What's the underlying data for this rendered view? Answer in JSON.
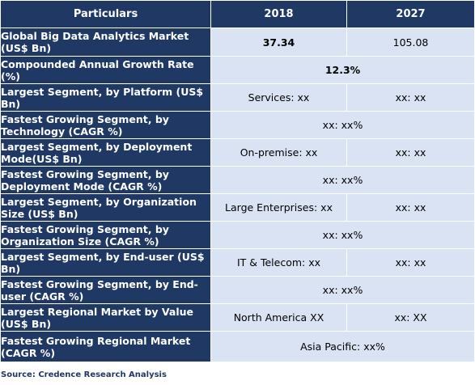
{
  "header": {
    "col_particulars": "Particulars",
    "col_2018": "2018",
    "col_2027": "2027"
  },
  "rows": [
    {
      "label": "Global Big Data Analytics Market (US$ Bn)",
      "v2018": "37.34",
      "v2027": "105.08"
    },
    {
      "label": "Compounded Annual Growth Rate (%)",
      "merged": "12.3%"
    },
    {
      "label": "Largest Segment, by Platform (US$ Bn)",
      "v2018": "Services: xx",
      "v2027": "xx: xx"
    },
    {
      "label": "Fastest Growing Segment, by Technology (CAGR %)",
      "merged": "xx:  xx%"
    },
    {
      "label": "Largest Segment, by Deployment Mode(US$ Bn)",
      "v2018": "On-premise: xx",
      "v2027": "xx: xx"
    },
    {
      "label": "Fastest Growing Segment, by Deployment Mode (CAGR %)",
      "merged": "xx:  xx%"
    },
    {
      "label": "Largest Segment, by Organization Size (US$ Bn)",
      "v2018": "Large Enterprises: xx",
      "v2027": "xx: xx"
    },
    {
      "label": "Fastest Growing Segment, by Organization Size (CAGR %)",
      "merged": "xx:  xx%"
    },
    {
      "label": "Largest Segment, by End-user (US$ Bn)",
      "v2018": "IT & Telecom: xx",
      "v2027": "xx: xx"
    },
    {
      "label": "Fastest Growing Segment, by End-user (CAGR %)",
      "merged": "xx:  xx%"
    },
    {
      "label": "Largest Regional Market by Value (US$ Bn)",
      "v2018": "North America XX",
      "v2027": "xx: XX"
    },
    {
      "label": "Fastest Growing Regional Market (CAGR %)",
      "merged": "Asia Pacific: xx%"
    }
  ],
  "source": "Source: Credence Research Analysis",
  "colors": {
    "header_bg": "#1f3864",
    "value_bg": "#dae3f3"
  }
}
